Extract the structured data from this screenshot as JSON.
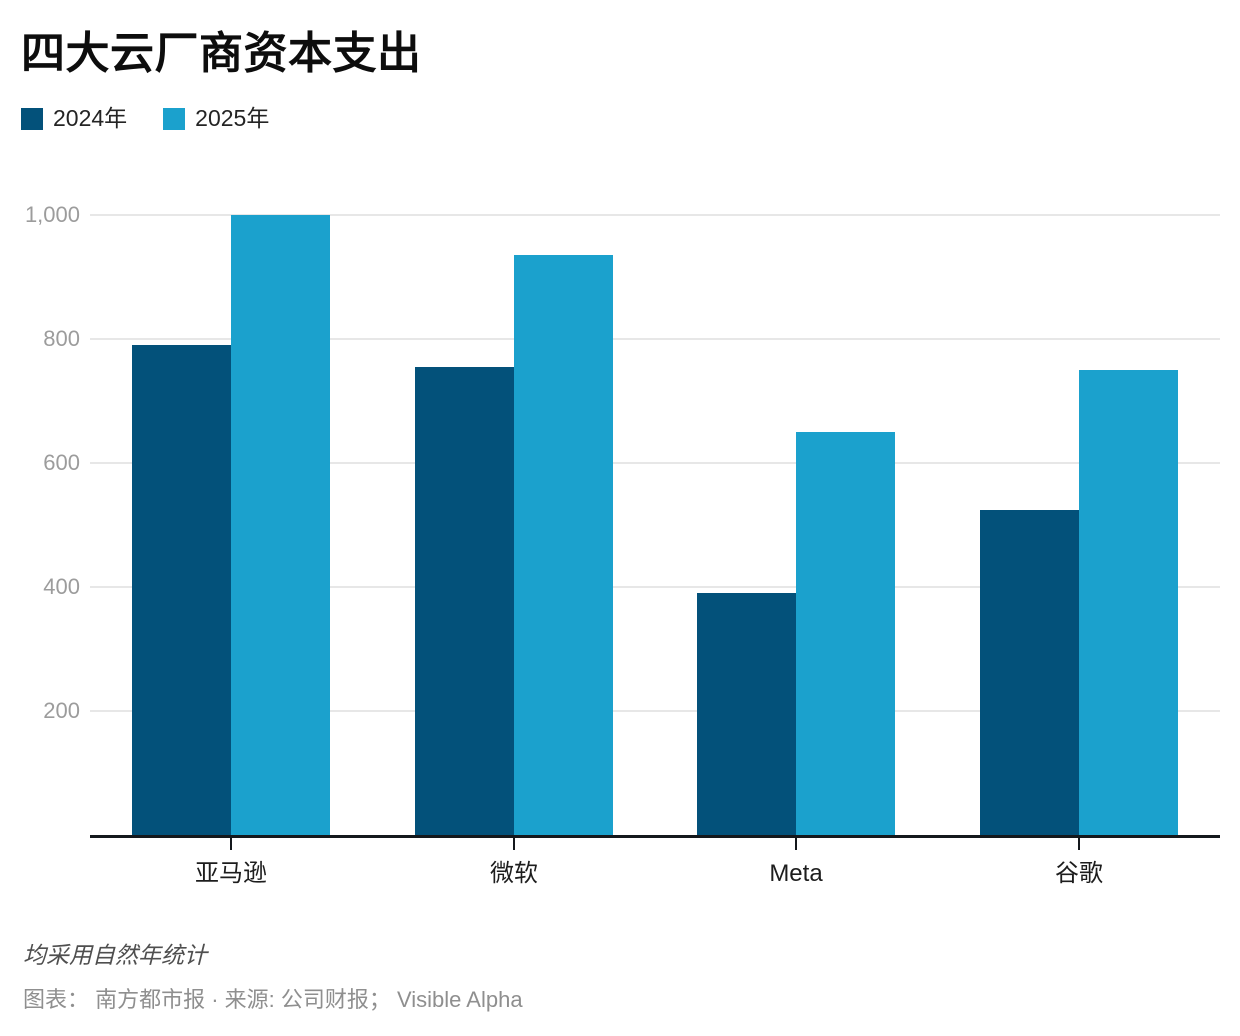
{
  "title": "四大云厂商资本支出",
  "legend": {
    "items": [
      {
        "label": "2024年",
        "color": "#03517a"
      },
      {
        "label": "2025年",
        "color": "#1ba1cd"
      }
    ]
  },
  "footnote": "均采用自然年统计",
  "credit": "图表： 南方都市报 · 来源: 公司财报； Visible Alpha",
  "colors": {
    "series_2024": "#03517a",
    "series_2025": "#1ba1cd",
    "grid": "#e7e7e7",
    "axis": "#14181c",
    "y_tick_label": "#9c9c9c",
    "category_label": "#1d1d1d"
  },
  "chart_data": {
    "type": "bar",
    "title": "四大云厂商资本支出",
    "categories": [
      "亚马逊",
      "微软",
      "Meta",
      "谷歌"
    ],
    "category_keys": [
      "amazon",
      "microsoft",
      "meta",
      "google"
    ],
    "series": [
      {
        "name": "2024年",
        "key": "2024",
        "color": "#03517a",
        "values": [
          790,
          755,
          390,
          525
        ]
      },
      {
        "name": "2025年",
        "key": "2025",
        "color": "#1ba1cd",
        "values": [
          1000,
          935,
          650,
          750
        ]
      }
    ],
    "xlabel": "",
    "ylabel": "",
    "ylim": [
      0,
      1000
    ],
    "yticks": [
      {
        "value": 200,
        "label": "200"
      },
      {
        "value": 400,
        "label": "400"
      },
      {
        "value": 600,
        "label": "600"
      },
      {
        "value": 800,
        "label": "800"
      },
      {
        "value": 1000,
        "label": "1,000"
      }
    ],
    "grid": true,
    "legend_position": "top-left",
    "note": "均采用自然年统计"
  }
}
